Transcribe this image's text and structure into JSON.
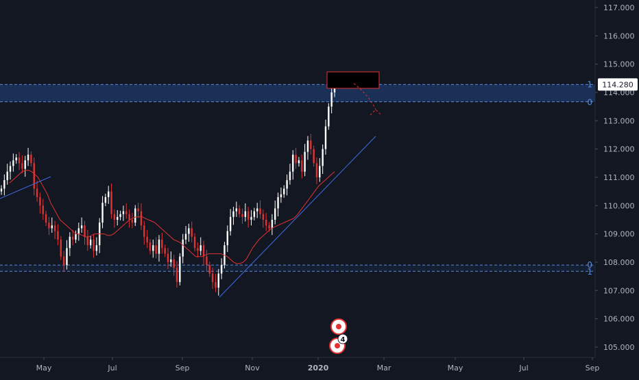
{
  "colors": {
    "background": "#131722",
    "axis_text": "#b2b5be",
    "candle_up": "#ffffff",
    "candle_down": "#e03333",
    "moving_average": "#e03333",
    "trendline": "#3d6be0",
    "fib_zone": "#1e3a6a",
    "fib_line": "#5b8ad6",
    "price_label_bg": "#ffffff",
    "price_label_text": "#131722",
    "target_box": "#e03333"
  },
  "chart_data": {
    "type": "candlestick",
    "y_axis": {
      "ylim": [
        104.7,
        117.3
      ],
      "tick_labels": [
        "117.000",
        "116.000",
        "115.000",
        "114.000",
        "113.000",
        "112.000",
        "111.000",
        "110.000",
        "109.000",
        "108.000",
        "107.000",
        "106.000",
        "105.000"
      ]
    },
    "x_axis": {
      "tick_labels": [
        "May",
        "Jul",
        "Sep",
        "Nov",
        "2020",
        "Mar",
        "May",
        "Jul",
        "Sep"
      ],
      "bold_labels": [
        "2020"
      ]
    },
    "last_price": "114.280",
    "closes": [
      110.6,
      110.9,
      111.2,
      111.4,
      111.6,
      111.7,
      111.5,
      111.3,
      111.6,
      111.8,
      111.5,
      110.6,
      110.3,
      110.0,
      109.7,
      109.4,
      109.2,
      109.3,
      109.1,
      108.8,
      108.2,
      107.9,
      108.5,
      108.9,
      108.8,
      109.0,
      109.2,
      109.3,
      108.9,
      108.6,
      108.8,
      108.4,
      108.6,
      109.4,
      110.1,
      110.3,
      110.5,
      109.7,
      109.5,
      109.6,
      109.7,
      109.8,
      109.7,
      109.5,
      109.4,
      109.9,
      109.8,
      109.3,
      108.9,
      108.7,
      108.4,
      108.6,
      108.3,
      108.8,
      108.5,
      108.3,
      108.0,
      108.1,
      107.8,
      107.3,
      108.2,
      108.8,
      109.0,
      109.2,
      108.9,
      108.5,
      108.4,
      108.6,
      108.2,
      107.9,
      107.6,
      107.3,
      107.1,
      107.6,
      107.9,
      108.6,
      109.1,
      109.6,
      109.8,
      109.9,
      109.7,
      109.6,
      109.8,
      109.5,
      109.6,
      109.8,
      109.9,
      109.7,
      109.5,
      109.3,
      109.2,
      109.5,
      109.9,
      110.3,
      110.4,
      110.6,
      110.9,
      111.2,
      111.8,
      111.5,
      111.6,
      111.2,
      111.9,
      112.3,
      112.0,
      111.5,
      111.0,
      111.4,
      112.0,
      112.8,
      113.5,
      114.0,
      114.25
    ],
    "moving_average": [
      110.8,
      110.9,
      111.0,
      111.1,
      111.2,
      111.25,
      111.25,
      111.2,
      111.1,
      111.0,
      110.8,
      110.6,
      110.4,
      110.1,
      109.9,
      109.7,
      109.5,
      109.4,
      109.3,
      109.2,
      109.1,
      109.0,
      109.0,
      108.95,
      108.9,
      108.9,
      108.95,
      109.0,
      109.0,
      109.0,
      109.0,
      108.95,
      108.95,
      109.0,
      109.1,
      109.2,
      109.3,
      109.4,
      109.5,
      109.55,
      109.6,
      109.6,
      109.6,
      109.55,
      109.5,
      109.45,
      109.4,
      109.3,
      109.2,
      109.1,
      109.0,
      108.9,
      108.8,
      108.75,
      108.7,
      108.6,
      108.5,
      108.4,
      108.3,
      108.2,
      108.2,
      108.2,
      108.25,
      108.3,
      108.3,
      108.3,
      108.3,
      108.3,
      108.25,
      108.2,
      108.1,
      108.0,
      107.95,
      107.95,
      108.0,
      108.1,
      108.3,
      108.5,
      108.65,
      108.8,
      108.9,
      109.0,
      109.1,
      109.2,
      109.25,
      109.3,
      109.35,
      109.4,
      109.45,
      109.5,
      109.55,
      109.65,
      109.8,
      109.95,
      110.1,
      110.25,
      110.4,
      110.55,
      110.7,
      110.8,
      110.9,
      111.0,
      111.1,
      111.2
    ],
    "fibonacci_levels": [
      {
        "label": "1",
        "price": 114.28
      },
      {
        "label": "0",
        "price": 113.67
      },
      {
        "label": "0",
        "price": 107.9
      },
      {
        "label": "1",
        "price": 107.68
      }
    ],
    "event_markers": [
      {
        "label": ""
      },
      {
        "label": "4"
      }
    ]
  }
}
